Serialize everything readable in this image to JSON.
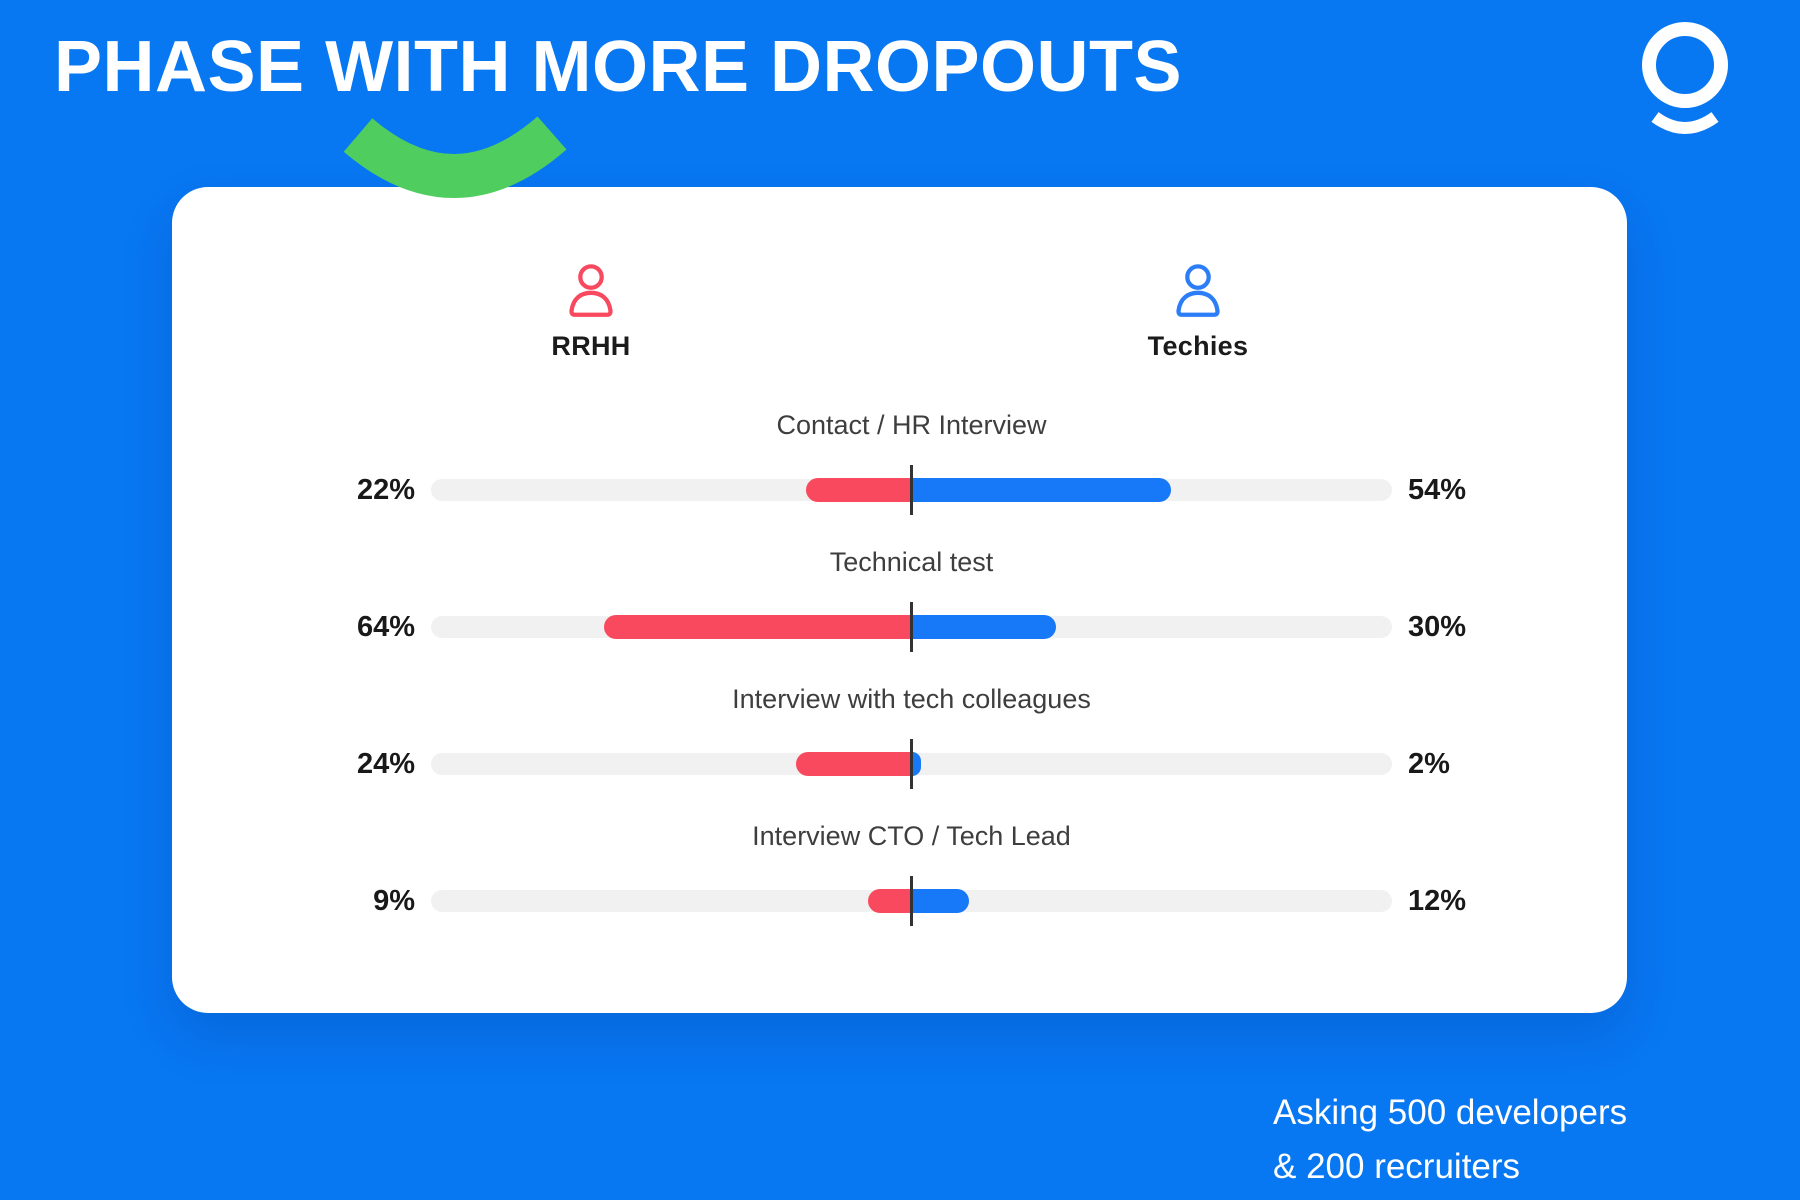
{
  "header": {
    "title": "PHASE WITH MORE DROPOUTS"
  },
  "icons": {
    "brand": "circle-with-smile-logo",
    "rrhh": "person-outline-icon",
    "techies": "person-outline-icon",
    "accent": "green-smile-underline"
  },
  "legend": {
    "left_label": "RRHH",
    "right_label": "Techies"
  },
  "footnote": {
    "line1": "Asking 500 developers",
    "line2": "& 200 recruiters"
  },
  "colors": {
    "background_blue": "#0877F2",
    "card_white": "#FFFFFF",
    "accent_green": "#4FCE5F",
    "rrhh_red": "#F9495F",
    "techies_blue": "#1778F8",
    "track_gray": "#F1F1F1",
    "divider_dark": "#333333",
    "label_gray": "#3E3E3E",
    "value_dark": "#191919"
  },
  "chart_data": {
    "type": "bar",
    "subtype": "diverging-horizontal-from-center",
    "title": "PHASE WITH MORE DROPOUTS",
    "categories": [
      "Contact / HR Interview",
      "Technical test",
      "Interview with tech colleagues",
      "Interview CTO / Tech Lead"
    ],
    "series": [
      {
        "name": "RRHH",
        "side": "left",
        "color": "#F9495F",
        "values": [
          22,
          64,
          24,
          9
        ]
      },
      {
        "name": "Techies",
        "side": "right",
        "color": "#1778F8",
        "values": [
          54,
          30,
          2,
          12
        ]
      }
    ],
    "value_labels": {
      "left": [
        "22%",
        "64%",
        "24%",
        "9%"
      ],
      "right": [
        "54%",
        "30%",
        "2%",
        "12%"
      ]
    },
    "unit": "%",
    "axis": {
      "origin": "center",
      "max_each_side": 100,
      "gridlines": false
    },
    "legend_position": "top"
  }
}
